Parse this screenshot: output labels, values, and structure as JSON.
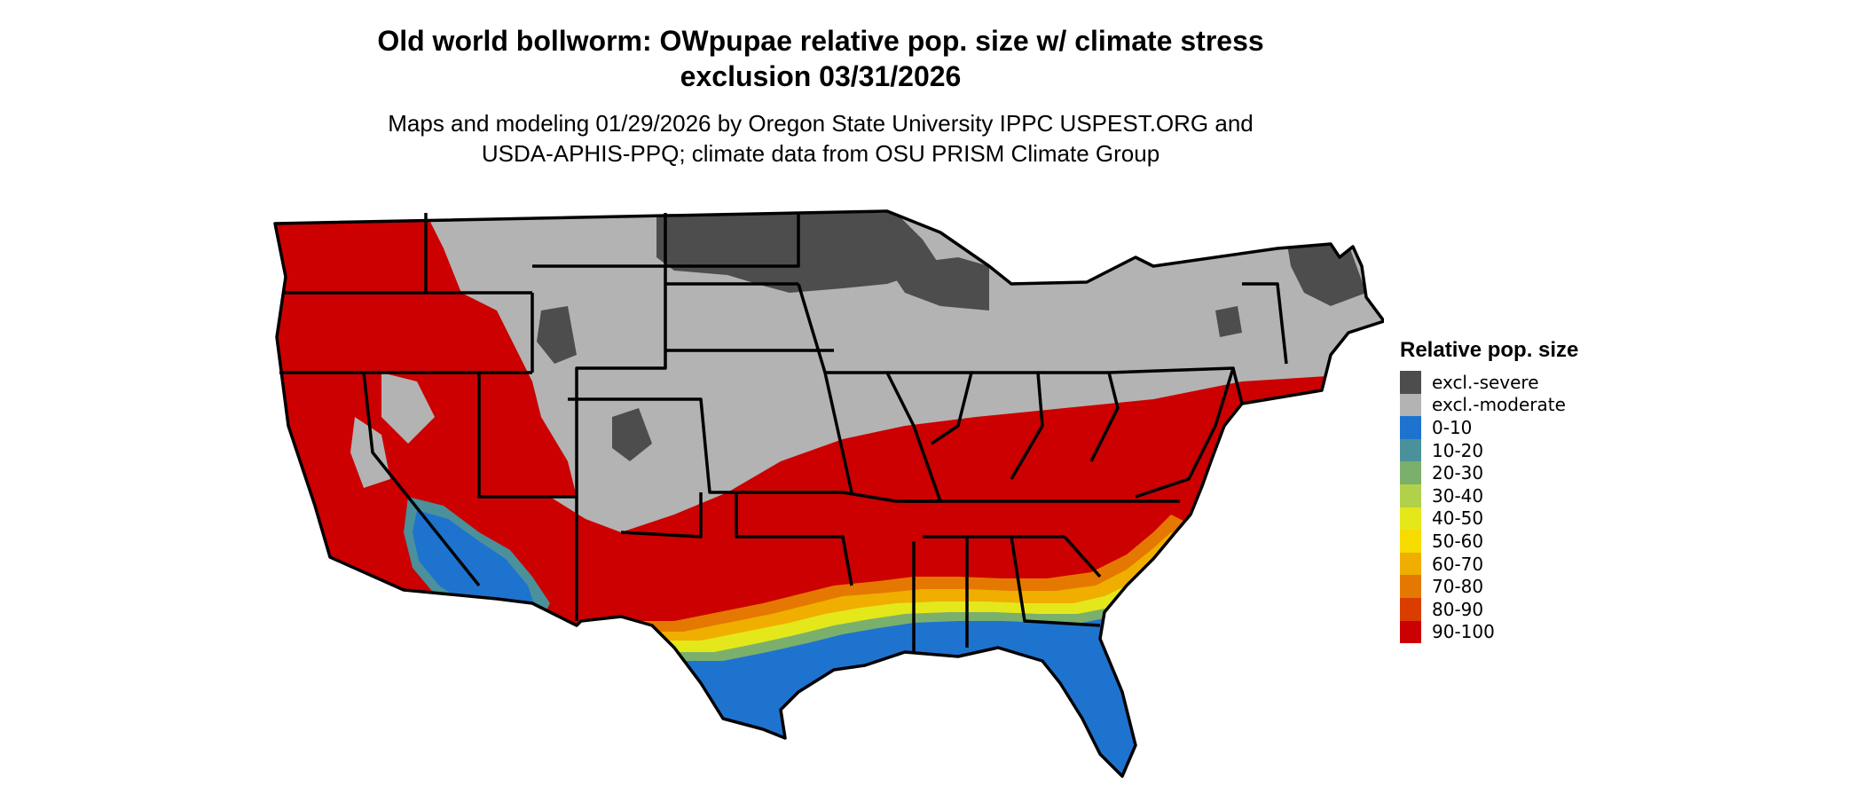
{
  "title_line1": "Old world bollworm: OWpupae relative pop. size w/ climate stress",
  "title_line2": "exclusion 03/31/2026",
  "subtitle_line1": "Maps and modeling 01/29/2026 by Oregon State University IPPC USPEST.ORG and",
  "subtitle_line2": "USDA-APHIS-PPQ; climate data from OSU PRISM Climate Group",
  "legend": {
    "title": "Relative pop. size",
    "items": [
      {
        "label": "excl.-severe",
        "color": "#4d4d4d"
      },
      {
        "label": "excl.-moderate",
        "color": "#b3b3b3"
      },
      {
        "label": "0-10",
        "color": "#1e73cf"
      },
      {
        "label": "10-20",
        "color": "#4a919b"
      },
      {
        "label": "20-30",
        "color": "#7bb06c"
      },
      {
        "label": "30-40",
        "color": "#b2d14a"
      },
      {
        "label": "40-50",
        "color": "#e4e81a"
      },
      {
        "label": "50-60",
        "color": "#f7dc00"
      },
      {
        "label": "60-70",
        "color": "#f0ae00"
      },
      {
        "label": "70-80",
        "color": "#e57800"
      },
      {
        "label": "80-90",
        "color": "#d93d00"
      },
      {
        "label": "90-100",
        "color": "#cc0000"
      }
    ]
  }
}
